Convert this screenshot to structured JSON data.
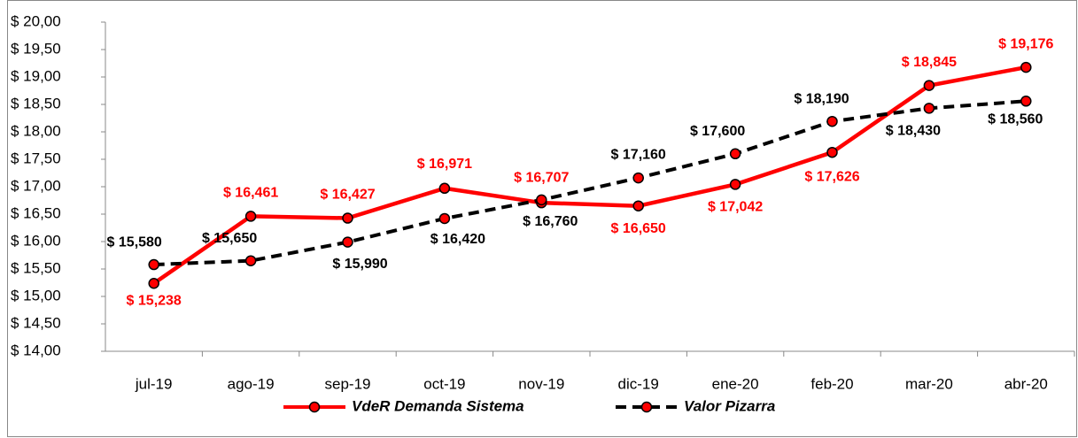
{
  "chart_data": {
    "type": "line",
    "categories": [
      "jul-19",
      "ago-19",
      "sep-19",
      "oct-19",
      "nov-19",
      "dic-19",
      "ene-20",
      "feb-20",
      "mar-20",
      "abr-20"
    ],
    "series": [
      {
        "name": "VdeR Demanda Sistema",
        "color": "#ff0000",
        "dash": false,
        "values": [
          15.238,
          16.461,
          16.427,
          16.971,
          16.707,
          16.65,
          17.042,
          17.626,
          18.845,
          19.176
        ],
        "value_labels": [
          "$ 15,238",
          "$ 16,461",
          "$ 16,427",
          "$ 16,971",
          "$ 16,707",
          "$ 16,650",
          "$ 17,042",
          "$ 17,626",
          "$ 18,845",
          "$ 19,176"
        ]
      },
      {
        "name": "Valor Pizarra",
        "color": "#000000",
        "dash": true,
        "values": [
          15.58,
          15.65,
          15.99,
          16.42,
          16.76,
          17.16,
          17.6,
          18.19,
          18.43,
          18.56
        ],
        "value_labels": [
          "$ 15,580",
          "$ 15,650",
          "$ 15,990",
          "$ 16,420",
          "$ 16,760",
          "$ 17,160",
          "$ 17,600",
          "$ 18,190",
          "$ 18,430",
          "$ 18,560"
        ]
      }
    ],
    "ylim": [
      14,
      20
    ],
    "yticks": [
      {
        "value": 14,
        "label": "$ 14,00"
      },
      {
        "value": 14.5,
        "label": "$ 14,50"
      },
      {
        "value": 15,
        "label": "$ 15,00"
      },
      {
        "value": 15.5,
        "label": "$ 15,50"
      },
      {
        "value": 16,
        "label": "$ 16,00"
      },
      {
        "value": 16.5,
        "label": "$ 16,50"
      },
      {
        "value": 17,
        "label": "$ 17,00"
      },
      {
        "value": 17.5,
        "label": "$ 17,50"
      },
      {
        "value": 18,
        "label": "$ 18,00"
      },
      {
        "value": 18.5,
        "label": "$ 18,50"
      },
      {
        "value": 19,
        "label": "$ 19,00"
      },
      {
        "value": 19.5,
        "label": "$ 19,50"
      },
      {
        "value": 20,
        "label": "$ 20,00"
      }
    ],
    "grid": false
  }
}
